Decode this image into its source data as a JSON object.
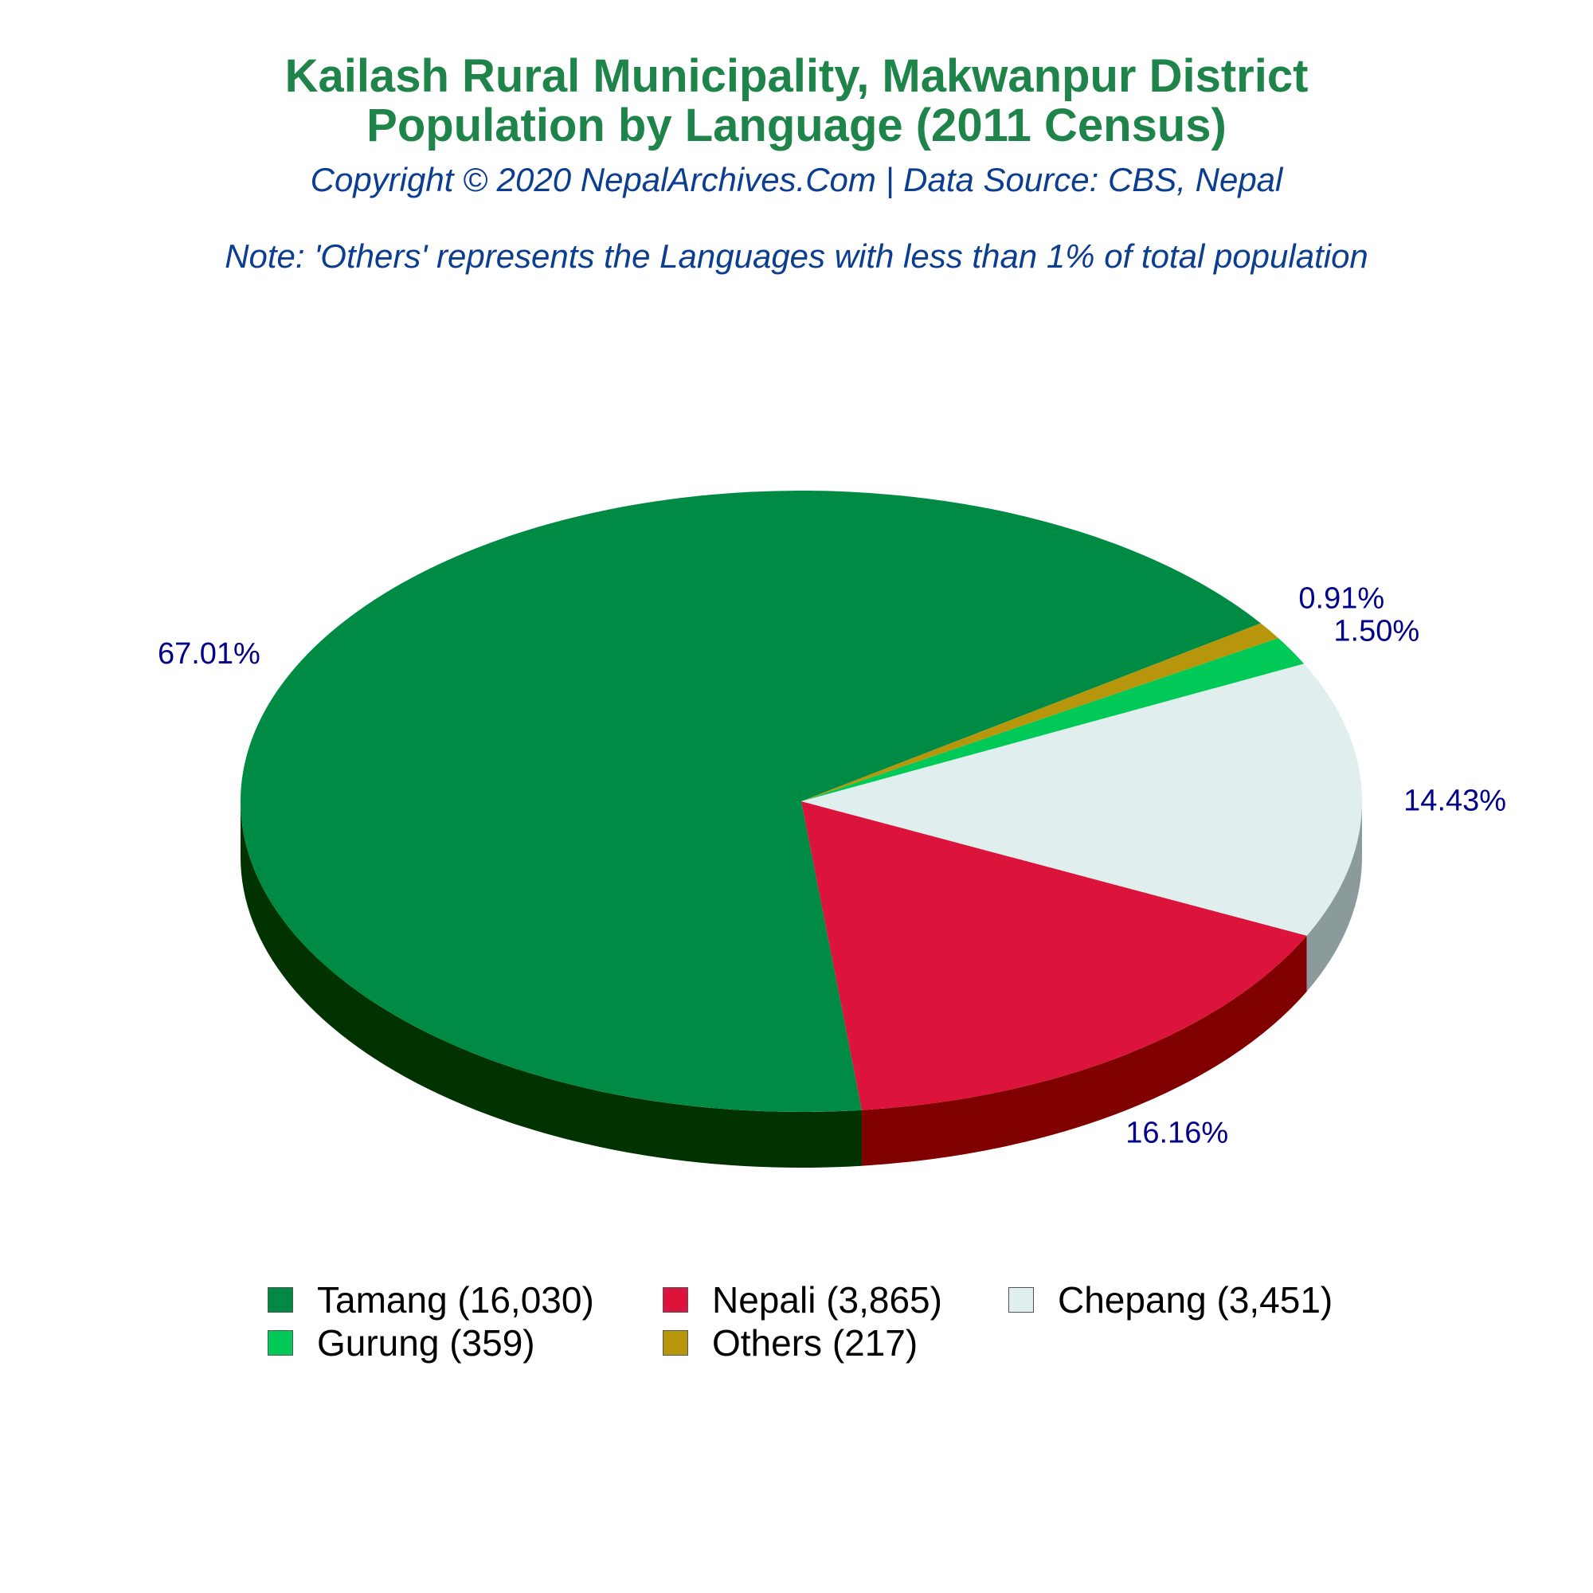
{
  "title_line1": "Kailash Rural Municipality, Makwanpur District",
  "title_line2": "Population by Language (2011 Census)",
  "copyright": "Copyright © 2020 NepalArchives.Com | Data Source: CBS, Nepal",
  "note": "Note: 'Others' represents the Languages with less than 1% of total population",
  "chart_data": {
    "type": "pie",
    "style": "3d",
    "categories": [
      "Tamang",
      "Nepali",
      "Chepang",
      "Gurung",
      "Others"
    ],
    "values": [
      16030,
      3865,
      3451,
      359,
      217
    ],
    "percent_labels": [
      "67.01%",
      "16.16%",
      "14.43%",
      "1.50%",
      "0.91%"
    ],
    "legend_labels": [
      "Tamang (16,030)",
      "Nepali (3,865)",
      "Chepang (3,451)",
      "Gurung (359)",
      "Others (217)"
    ],
    "colors": [
      "#008b45",
      "#dc143c",
      "#e0eeee",
      "#00c957",
      "#b8960c"
    ],
    "side_colors": [
      "#003300",
      "#800000",
      "#8b9a9a",
      "#007030",
      "#6b5500"
    ],
    "label_color": "#00008b",
    "legend_position": "bottom"
  }
}
